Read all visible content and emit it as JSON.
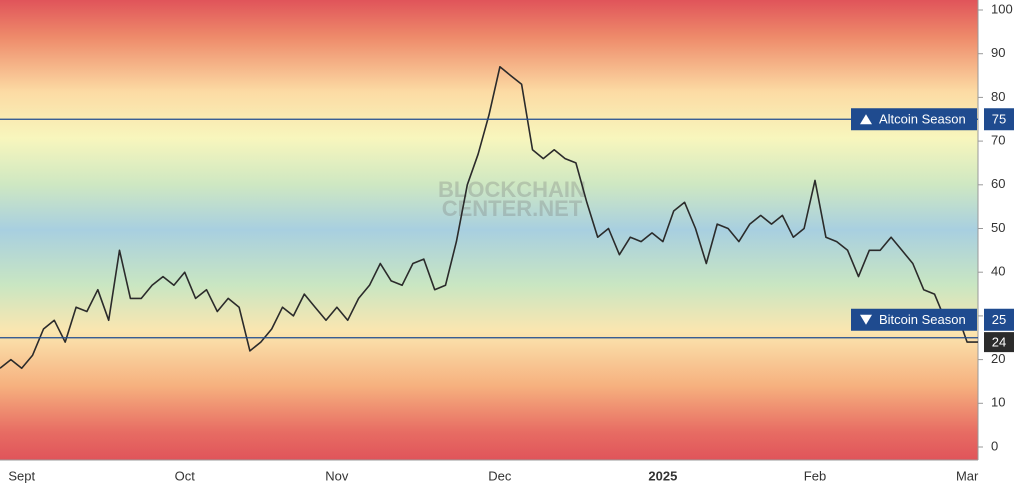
{
  "chart_data": {
    "type": "line",
    "watermark": [
      "BLOCKCHAIN",
      "CENTER.NET"
    ],
    "categories": [
      null,
      null,
      "Sept",
      null,
      null,
      null,
      null,
      null,
      null,
      null,
      null,
      null,
      null,
      null,
      null,
      null,
      null,
      "Oct",
      null,
      null,
      null,
      null,
      null,
      null,
      null,
      null,
      null,
      null,
      null,
      null,
      null,
      "Nov",
      null,
      null,
      null,
      null,
      null,
      null,
      null,
      null,
      null,
      null,
      null,
      null,
      null,
      null,
      "Dec",
      null,
      null,
      null,
      null,
      null,
      null,
      null,
      null,
      null,
      null,
      null,
      null,
      null,
      null,
      "2025",
      null,
      null,
      null,
      null,
      null,
      null,
      null,
      null,
      null,
      null,
      null,
      null,
      null,
      "Feb",
      null,
      null,
      null,
      null,
      null,
      null,
      null,
      null,
      null,
      null,
      null,
      null,
      null,
      "Mar",
      null
    ],
    "values": [
      18,
      20,
      18,
      21,
      27,
      29,
      24,
      32,
      31,
      36,
      29,
      45,
      34,
      34,
      37,
      39,
      37,
      40,
      34,
      36,
      31,
      34,
      32,
      22,
      24,
      27,
      32,
      30,
      35,
      32,
      29,
      32,
      29,
      34,
      37,
      42,
      38,
      37,
      42,
      43,
      36,
      37,
      47,
      60,
      67,
      76,
      87,
      85,
      83,
      68,
      66,
      68,
      66,
      65,
      56,
      48,
      50,
      44,
      48,
      47,
      49,
      47,
      54,
      56,
      50,
      42,
      51,
      50,
      47,
      51,
      53,
      51,
      53,
      48,
      50,
      61,
      48,
      47,
      45,
      39,
      45,
      45,
      48,
      45,
      42,
      36,
      35,
      29,
      31,
      24,
      24
    ],
    "color": "#2b2b2b",
    "ylim": [
      0,
      100
    ],
    "yticks": [
      0,
      10,
      20,
      30,
      40,
      50,
      60,
      70,
      80,
      90,
      100
    ],
    "reference_lines": [
      {
        "label": "Altcoin Season",
        "value": 75,
        "color": "#1f4b8f"
      },
      {
        "label": "Bitcoin Season",
        "value": 25,
        "color": "#1f4b8f"
      }
    ]
  }
}
